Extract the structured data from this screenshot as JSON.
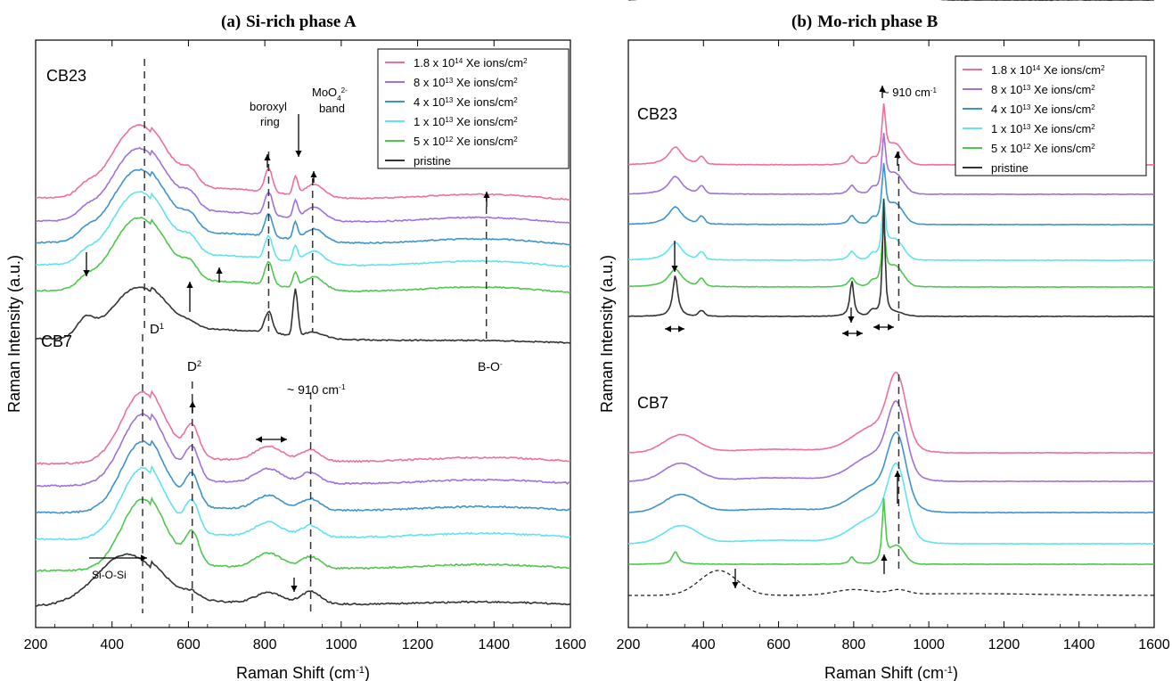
{
  "figure": {
    "legend_entries": [
      {
        "label": "1.8 x 10",
        "sup": "14",
        "tail": " Xe ions/cm",
        "tail_sup": "2",
        "color": "#f06f9a"
      },
      {
        "label": "8  x 10",
        "sup": "13",
        "tail": " Xe ions/cm",
        "tail_sup": "2",
        "color": "#a070dc"
      },
      {
        "label": "4  x 10",
        "sup": "13",
        "tail": " Xe ions/cm",
        "tail_sup": "2",
        "color": "#3d93cf"
      },
      {
        "label": "1  x 10",
        "sup": "13",
        "tail": " Xe ions/cm",
        "tail_sup": "2",
        "color": "#5fe3ef"
      },
      {
        "label": "5  x 10",
        "sup": "12",
        "tail": " Xe ions/cm",
        "tail_sup": "2",
        "color": "#4dc84d"
      },
      {
        "label": "pristine",
        "sup": "",
        "tail": "",
        "tail_sup": "",
        "color": "#333333"
      }
    ]
  },
  "chart_data": [
    {
      "type": "line",
      "panel": "a",
      "title_tag": "(a)",
      "title": "Si-rich phase A",
      "xlabel": "Raman Shift (cm",
      "xlabel_sup": "-1",
      "xlabel_end": ")",
      "ylabel": "Raman Intensity (a.u.)",
      "xlim": [
        200,
        1600
      ],
      "xticks": [
        200,
        400,
        600,
        800,
        1000,
        1200,
        1400,
        1600
      ],
      "series_names": [
        "1.8 x 10^14 Xe ions/cm^2",
        "8 x 10^13 Xe ions/cm^2",
        "4 x 10^13 Xe ions/cm^2",
        "1 x 10^13 Xe ions/cm^2",
        "5 x 10^12 Xe ions/cm^2",
        "pristine"
      ],
      "groups": [
        {
          "label": "CB23",
          "approx_peaks_cm-1": [
            330,
            490,
            605,
            810,
            880,
            930,
            1380
          ]
        },
        {
          "label": "CB7",
          "approx_peaks_cm-1": [
            490,
            610,
            810,
            920
          ]
        }
      ],
      "annotations": [
        {
          "text": "MoO",
          "sub": "4",
          "sup": "2-"
        },
        {
          "text": "band"
        },
        {
          "text": "boroxyl"
        },
        {
          "text": "ring"
        },
        {
          "text": "D",
          "sup": "1"
        },
        {
          "text": "D",
          "sup": "2"
        },
        {
          "text": "~ 910 cm",
          "sup": "-1"
        },
        {
          "text": "B-O",
          "sup": "-"
        },
        {
          "text": "Si-O-Si"
        }
      ],
      "reference_lines_cm-1": [
        485,
        810,
        925,
        1380,
        480,
        610,
        920
      ]
    },
    {
      "type": "line",
      "panel": "b",
      "title_tag": "(b)",
      "title": "Mo-rich phase B",
      "xlabel": "Raman Shift (cm",
      "xlabel_sup": "-1",
      "xlabel_end": ")",
      "ylabel": "Raman Intensity (a.u.)",
      "xlim": [
        200,
        1600
      ],
      "xticks": [
        200,
        400,
        600,
        800,
        1000,
        1200,
        1400,
        1600
      ],
      "series_names": [
        "1.8 x 10^14 Xe ions/cm^2",
        "8 x 10^13 Xe ions/cm^2",
        "4 x 10^13 Xe ions/cm^2",
        "1 x 10^13 Xe ions/cm^2",
        "5 x 10^12 Xe ions/cm^2",
        "pristine"
      ],
      "groups": [
        {
          "label": "CB23",
          "approx_peaks_cm-1": [
            325,
            395,
            795,
            880,
            910
          ]
        },
        {
          "label": "CB7",
          "approx_peaks_cm-1": [
            340,
            880,
            915
          ]
        }
      ],
      "annotations": [
        {
          "text": "~ 910 cm",
          "sup": "-1"
        }
      ],
      "reference_lines_cm-1": [
        920,
        920
      ]
    }
  ]
}
